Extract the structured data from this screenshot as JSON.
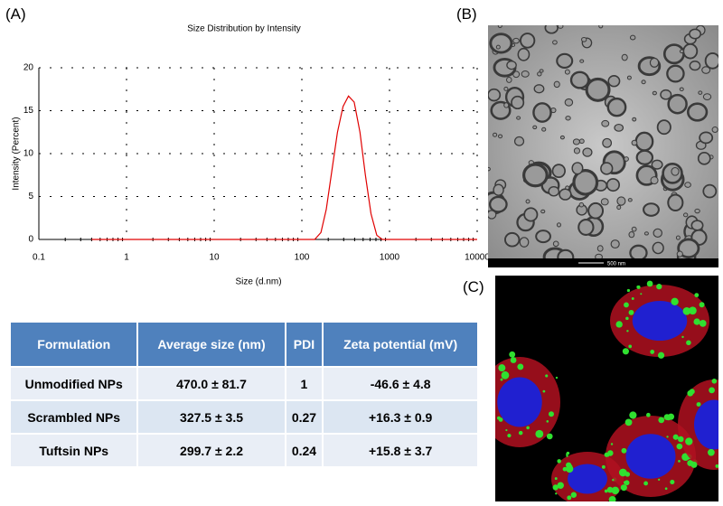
{
  "chart_data": {
    "type": "line",
    "title": "Size Distribution by Intensity",
    "x_label": "Size (d.nm)",
    "y_label": "Intensity (Percent)",
    "x": [
      0.4,
      1,
      10,
      100,
      140,
      165,
      190,
      220,
      255,
      295,
      340,
      395,
      460,
      530,
      615,
      715,
      825,
      1000,
      10000
    ],
    "values": [
      0,
      0,
      0,
      0,
      0,
      0.8,
      3.5,
      8.0,
      12.5,
      15.5,
      16.7,
      16.0,
      12.5,
      7.5,
      3.0,
      0.5,
      0,
      0,
      0
    ],
    "color": "#e00000",
    "xlim": [
      0.1,
      10000
    ],
    "xticks": [
      0.1,
      1,
      10,
      100,
      1000,
      10000
    ],
    "x_log": true,
    "ylim": [
      0,
      20
    ],
    "yticks": [
      0,
      5,
      10,
      15,
      20
    ],
    "grid": true
  },
  "panels": {
    "a": "(A)",
    "b": "(B)",
    "c": "(C)"
  },
  "scale_bar": "500 nm",
  "table": {
    "header": [
      "Formulation",
      "Average size (nm)",
      "PDI",
      "Zeta potential (mV)"
    ],
    "rows": [
      [
        "Unmodified NPs",
        "470.0 ± 81.7",
        "1",
        "-46.6 ± 4.8"
      ],
      [
        "Scrambled NPs",
        "327.5 ± 3.5",
        "0.27",
        "+16.3 ± 0.9"
      ],
      [
        "Tuftsin NPs",
        "299.7 ± 2.2",
        "0.24",
        "+15.8 ± 3.7"
      ]
    ]
  }
}
